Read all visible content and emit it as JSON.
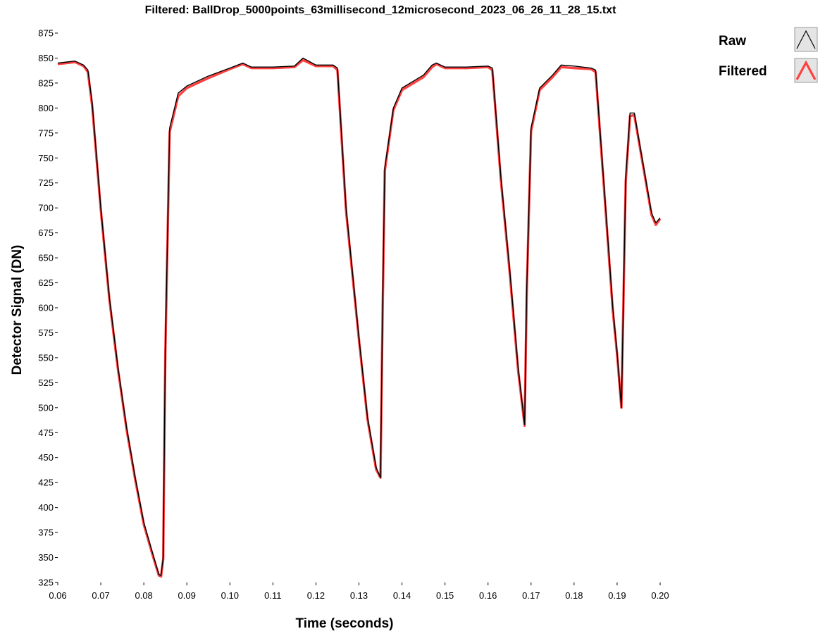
{
  "chart_data": {
    "type": "line",
    "title": "Filtered: BallDrop_5000points_63millisecond_12microsecond_2023_06_26_11_28_15.txt",
    "xlabel": "Time (seconds)",
    "ylabel": "Detector Signal (DN)",
    "xlim": [
      0.06,
      0.2
    ],
    "ylim": [
      325,
      875
    ],
    "x_ticks": [
      "0.06",
      "0.07",
      "0.08",
      "0.09",
      "0.10",
      "0.11",
      "0.12",
      "0.13",
      "0.14",
      "0.15",
      "0.16",
      "0.17",
      "0.18",
      "0.19",
      "0.20"
    ],
    "y_ticks": [
      "325",
      "350",
      "375",
      "400",
      "425",
      "450",
      "475",
      "500",
      "525",
      "550",
      "575",
      "600",
      "625",
      "650",
      "675",
      "700",
      "725",
      "750",
      "775",
      "800",
      "825",
      "850",
      "875"
    ],
    "grid": false,
    "legend_position": "top-right",
    "series": [
      {
        "name": "Raw",
        "color": "#000000",
        "x": [
          0.06,
          0.062,
          0.064,
          0.066,
          0.067,
          0.068,
          0.07,
          0.072,
          0.074,
          0.076,
          0.078,
          0.08,
          0.082,
          0.0835,
          0.084,
          0.0845,
          0.085,
          0.086,
          0.088,
          0.09,
          0.095,
          0.1,
          0.103,
          0.105,
          0.11,
          0.115,
          0.117,
          0.12,
          0.124,
          0.125,
          0.127,
          0.13,
          0.132,
          0.134,
          0.135,
          0.1355,
          0.136,
          0.138,
          0.14,
          0.145,
          0.147,
          0.148,
          0.15,
          0.155,
          0.16,
          0.161,
          0.163,
          0.165,
          0.167,
          0.1685,
          0.169,
          0.17,
          0.172,
          0.175,
          0.177,
          0.18,
          0.184,
          0.185,
          0.187,
          0.189,
          0.19,
          0.191,
          0.192,
          0.193,
          0.194,
          0.196,
          0.197,
          0.198,
          0.199,
          0.2
        ],
        "y": [
          845,
          846,
          847,
          843,
          838,
          805,
          700,
          610,
          540,
          480,
          430,
          385,
          355,
          333,
          332,
          350,
          560,
          780,
          815,
          822,
          832,
          840,
          845,
          841,
          841,
          842,
          850,
          843,
          843,
          840,
          700,
          570,
          490,
          440,
          430,
          600,
          740,
          800,
          820,
          833,
          843,
          845,
          841,
          841,
          842,
          840,
          730,
          640,
          540,
          483,
          620,
          780,
          820,
          833,
          843,
          842,
          840,
          838,
          720,
          600,
          555,
          500,
          730,
          795,
          795,
          745,
          720,
          695,
          685,
          690
        ]
      },
      {
        "name": "Filtered",
        "color": "#ff4040",
        "x": [
          0.06,
          0.062,
          0.064,
          0.066,
          0.067,
          0.068,
          0.07,
          0.072,
          0.074,
          0.076,
          0.078,
          0.08,
          0.082,
          0.0835,
          0.084,
          0.0845,
          0.085,
          0.086,
          0.088,
          0.09,
          0.095,
          0.1,
          0.103,
          0.105,
          0.11,
          0.115,
          0.117,
          0.12,
          0.124,
          0.125,
          0.127,
          0.13,
          0.132,
          0.134,
          0.135,
          0.1355,
          0.136,
          0.138,
          0.14,
          0.145,
          0.147,
          0.148,
          0.15,
          0.155,
          0.16,
          0.161,
          0.163,
          0.165,
          0.167,
          0.1685,
          0.169,
          0.17,
          0.172,
          0.175,
          0.177,
          0.18,
          0.184,
          0.185,
          0.187,
          0.189,
          0.19,
          0.191,
          0.192,
          0.193,
          0.194,
          0.196,
          0.197,
          0.198,
          0.199,
          0.2
        ],
        "y": [
          844,
          845,
          846,
          842,
          836,
          802,
          698,
          608,
          538,
          478,
          428,
          383,
          353,
          332,
          331,
          348,
          555,
          776,
          812,
          820,
          830,
          839,
          844,
          840,
          840,
          841,
          848,
          842,
          842,
          838,
          697,
          568,
          488,
          438,
          430,
          596,
          737,
          798,
          818,
          831,
          841,
          844,
          840,
          840,
          841,
          838,
          727,
          637,
          537,
          482,
          616,
          777,
          818,
          831,
          841,
          840,
          839,
          836,
          717,
          597,
          553,
          500,
          726,
          792,
          793,
          743,
          718,
          693,
          683,
          689
        ]
      }
    ]
  }
}
